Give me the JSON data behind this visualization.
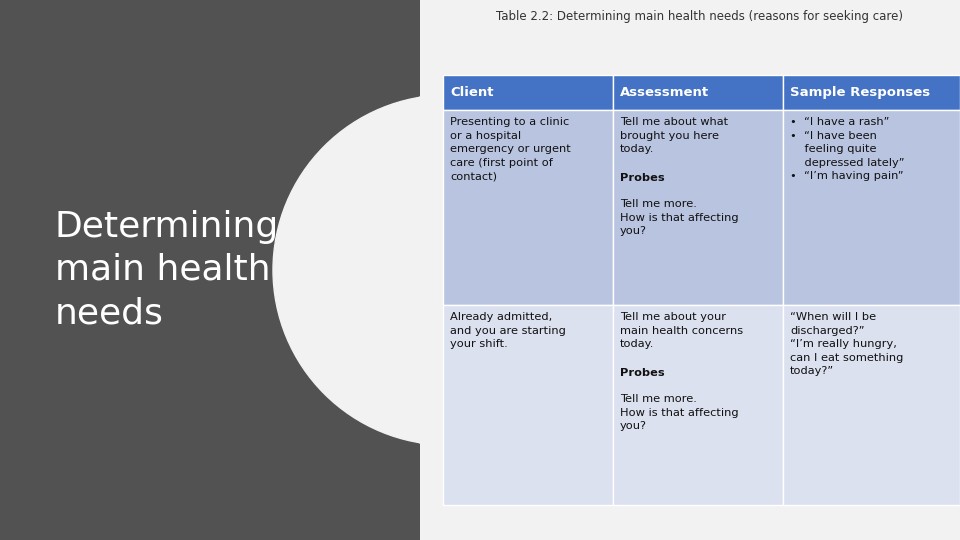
{
  "title": "Table 2.2: Determining main health needs (reasons for seeking care)",
  "left_panel_bg": "#525252",
  "left_panel_text": "Determining\nmain health\nneeds",
  "left_panel_text_color": "#ffffff",
  "header_bg": "#4472c4",
  "header_text_color": "#ffffff",
  "row1_bg": "#b8c4e0",
  "row2_bg": "#dce1f0",
  "headers": [
    "Client",
    "Assessment",
    "Sample Responses"
  ],
  "bg_color": "#f2f2f2"
}
